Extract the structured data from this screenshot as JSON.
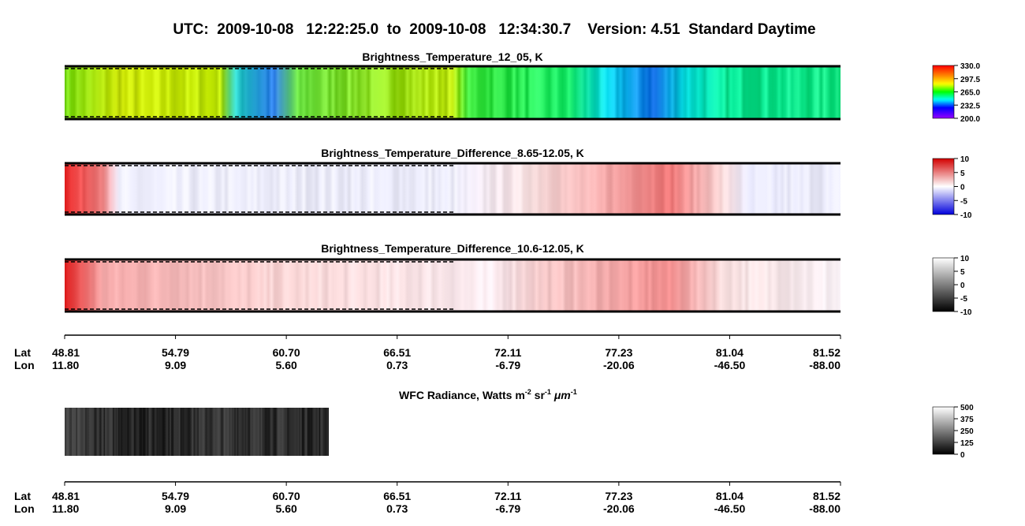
{
  "title": "UTC:  2009-10-08   12:22:25.0  to  2009-10-08   12:34:30.7    Version: 4.51  Standard Daytime",
  "panels": [
    {
      "title": "Brightness_Temperature_12_05, K",
      "colorbar": [
        "330.0",
        "297.5",
        "265.0",
        "232.5",
        "200.0"
      ]
    },
    {
      "title": "Brightness_Temperature_Difference_8.65-12.05, K",
      "colorbar": [
        "10",
        "5",
        "0",
        "-5",
        "-10"
      ]
    },
    {
      "title": "Brightness_Temperature_Difference_10.6-12.05, K",
      "colorbar": [
        "10",
        "5",
        "0",
        "-5",
        "-10"
      ]
    }
  ],
  "wfc": {
    "title_parts": [
      "WFC Radiance, Watts m",
      "-2",
      " sr",
      "-1",
      " μm",
      "-1"
    ],
    "colorbar": [
      "500",
      "375",
      "250",
      "125",
      "0"
    ]
  },
  "axis": {
    "lat_label": "Lat",
    "lon_label": "Lon",
    "lat": [
      "48.81",
      "54.79",
      "60.70",
      "66.51",
      "72.11",
      "77.23",
      "81.04",
      "81.52"
    ],
    "lon": [
      "11.80",
      "9.09",
      "5.60",
      "0.73",
      "-6.79",
      "-20.06",
      "-46.50",
      "-88.00"
    ]
  }
}
